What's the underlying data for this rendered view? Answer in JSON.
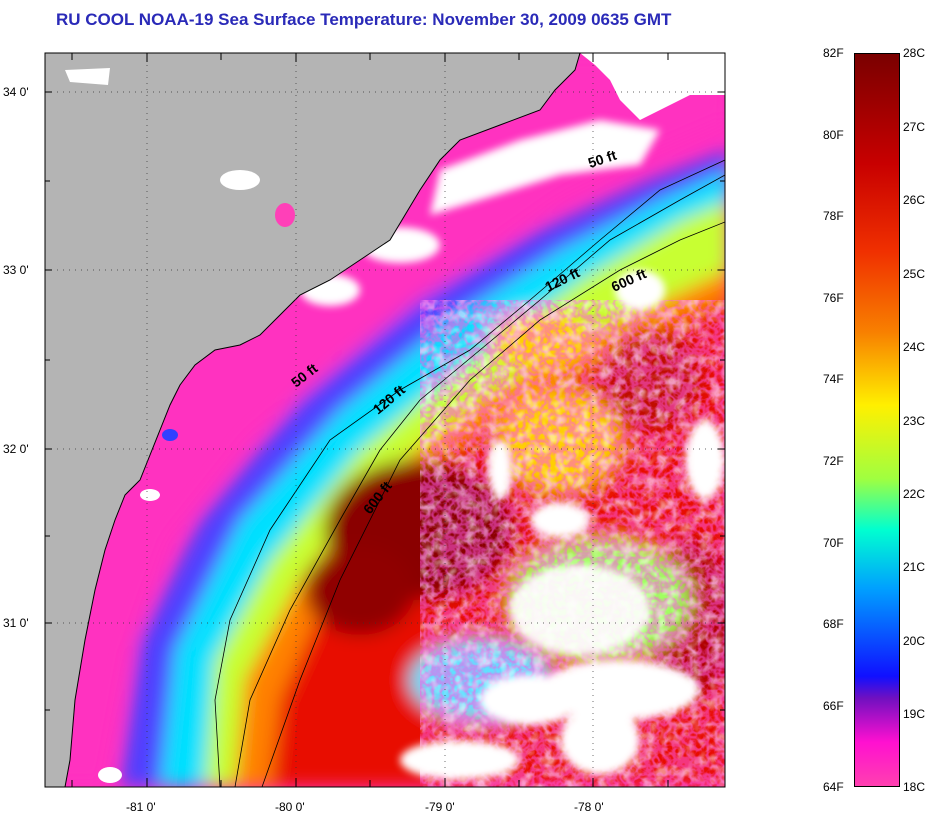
{
  "title": "RU COOL  NOAA-19  Sea Surface Temperature:  November 30, 2009 0635 GMT",
  "map": {
    "lat_labels": [
      "34 0'",
      "33 0'",
      "32 0'",
      "31 0'"
    ],
    "lon_labels": [
      "-81 0'",
      "-80 0'",
      "-79 0'",
      "-78 0'"
    ],
    "contours": [
      "50 ft",
      "120 ft",
      "600 ft"
    ],
    "colors": {
      "land": "#b4b4b4",
      "cloud": "#ffffff",
      "cold": "#ff20c0",
      "warm": "#8a0000"
    }
  },
  "colorbar": {
    "fahrenheit": [
      "82F",
      "80F",
      "78F",
      "76F",
      "74F",
      "72F",
      "70F",
      "68F",
      "66F",
      "64F"
    ],
    "celsius": [
      "28C",
      "27C",
      "26C",
      "25C",
      "24C",
      "23C",
      "22C",
      "21C",
      "20C",
      "19C",
      "18C"
    ]
  }
}
